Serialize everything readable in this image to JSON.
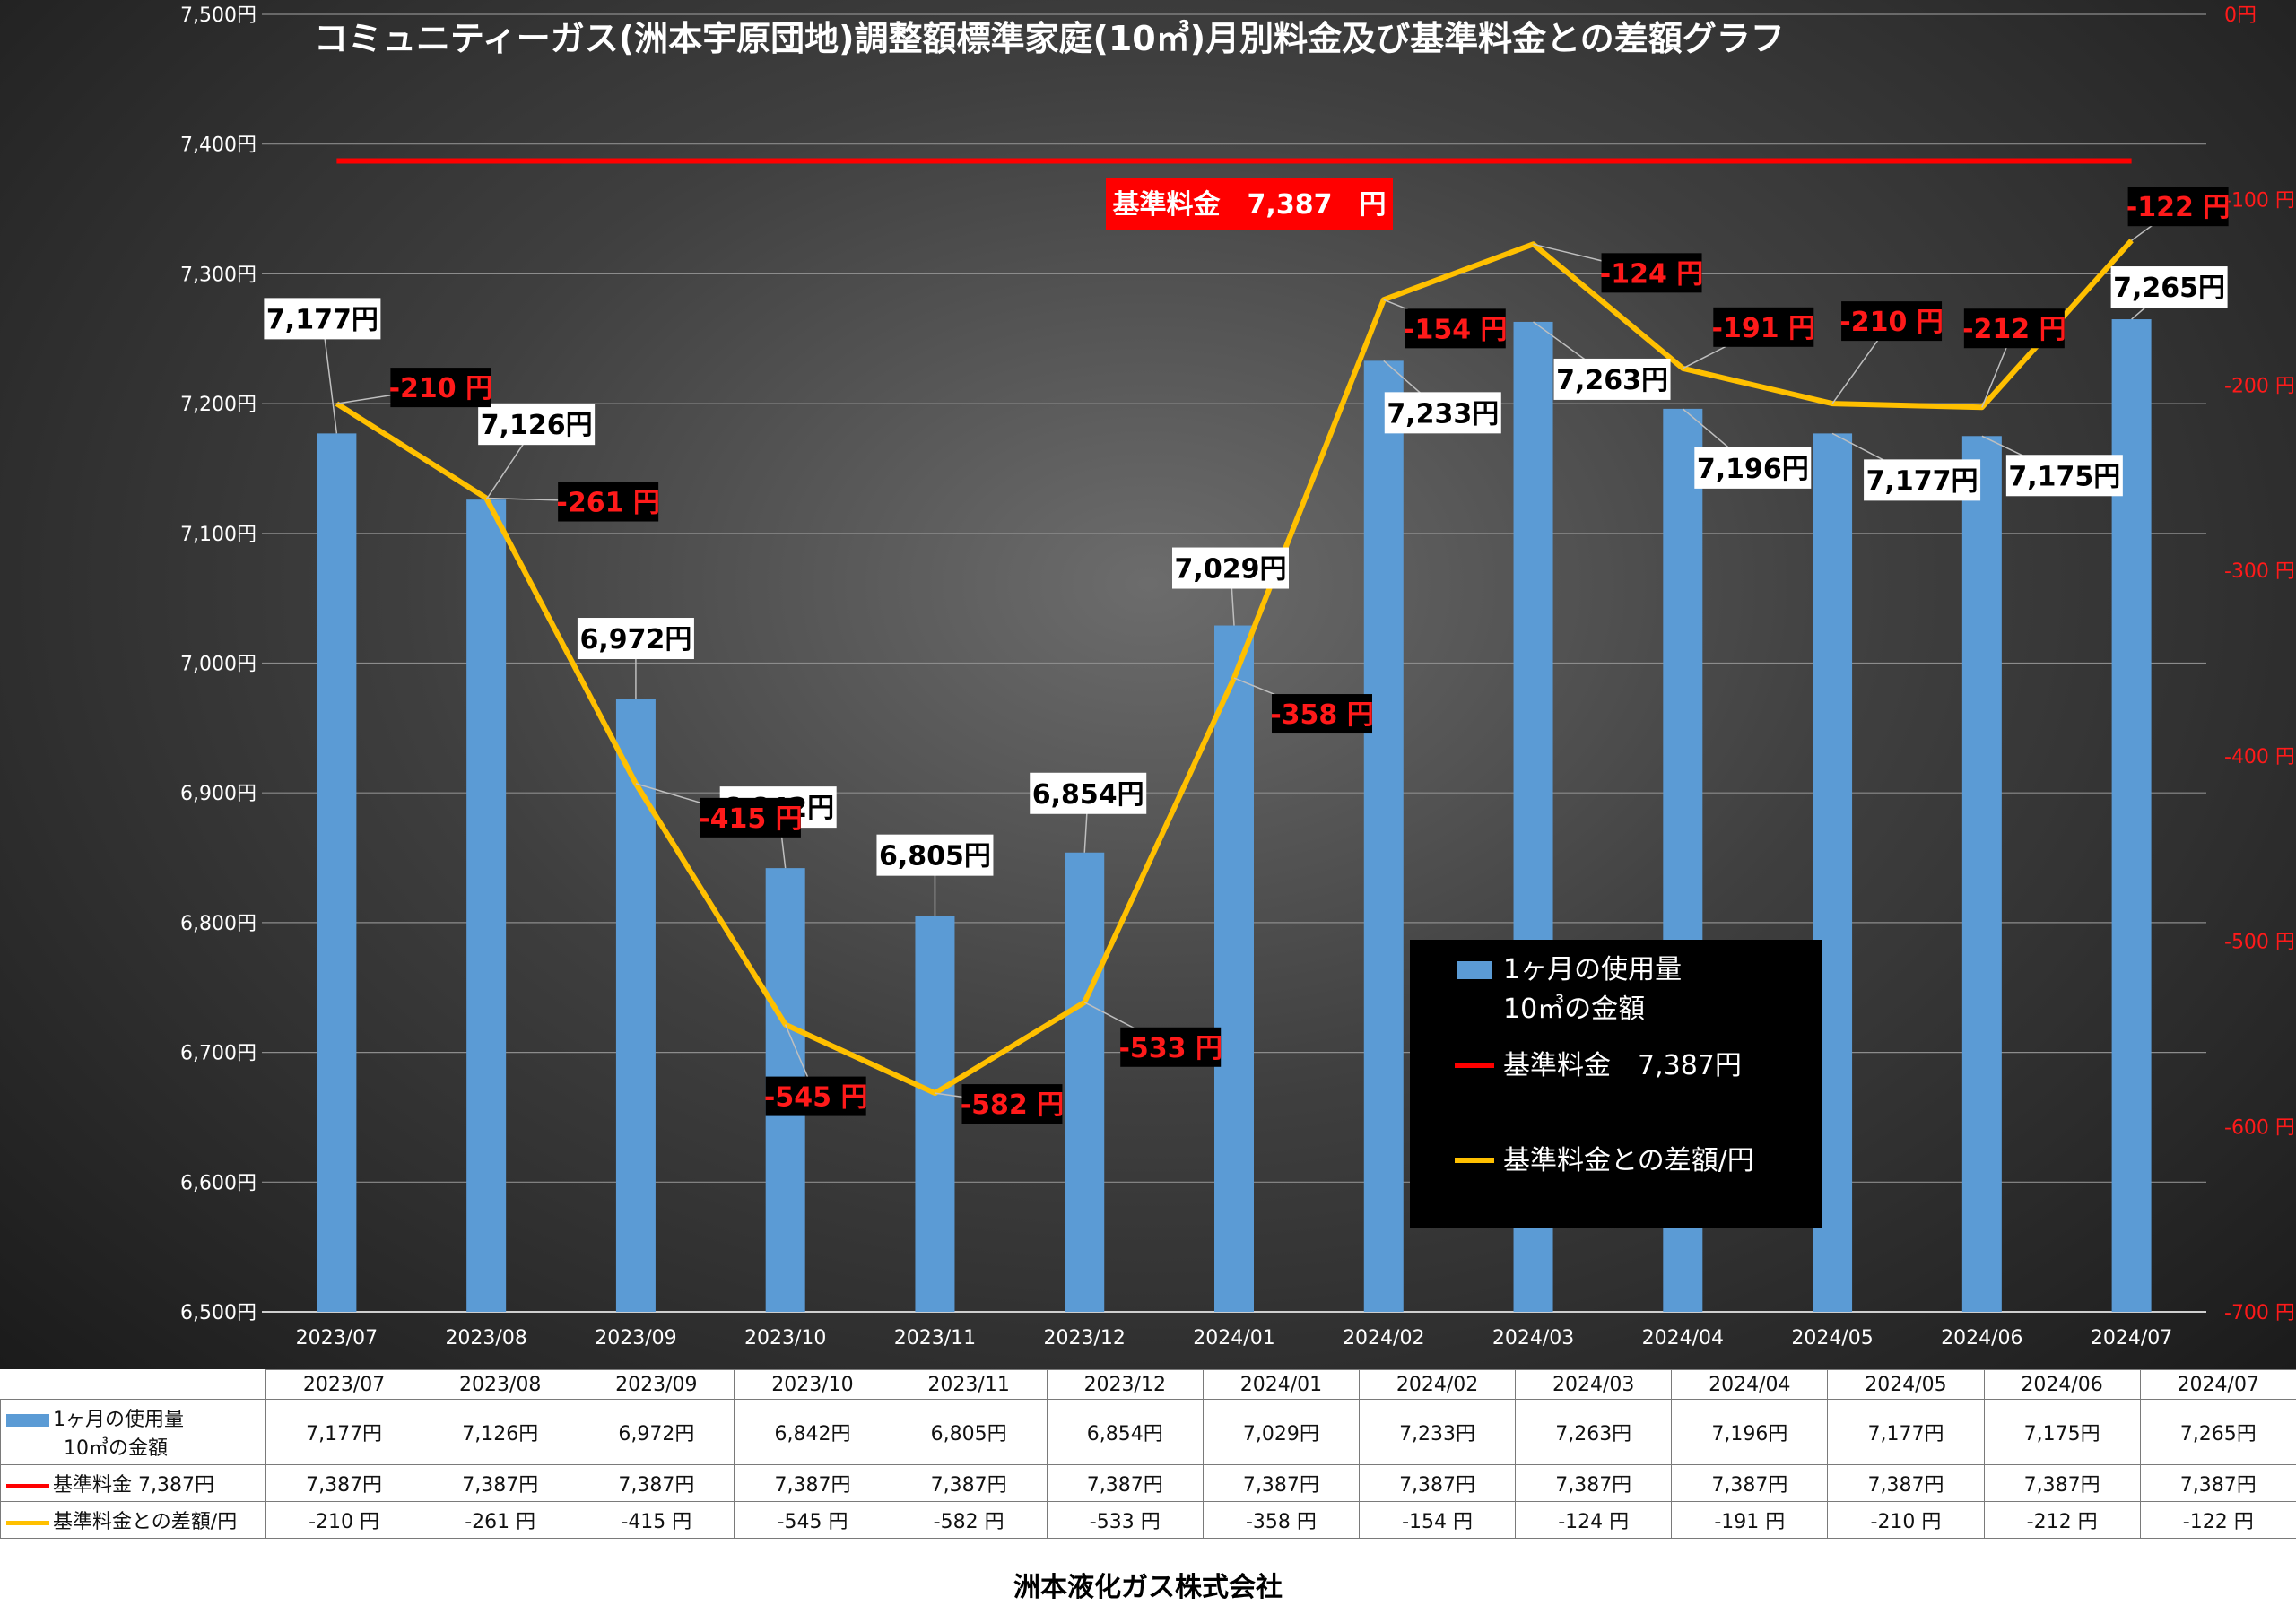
{
  "chart_data": {
    "type": "bar",
    "title": "コミュニティーガス(洲本宇原団地)調整額標準家庭(10㎥)月別料金及び基準料金との差額グラフ",
    "categories": [
      "2023/07",
      "2023/08",
      "2023/09",
      "2023/10",
      "2023/11",
      "2023/12",
      "2024/01",
      "2024/02",
      "2024/03",
      "2024/04",
      "2024/05",
      "2024/06",
      "2024/07"
    ],
    "series": [
      {
        "name": "1ヶ月の使用量 10㎥の金額",
        "type": "bar",
        "axis": "left",
        "color": "#5b9bd5",
        "values": [
          7177,
          7126,
          6972,
          6842,
          6805,
          6854,
          7029,
          7233,
          7263,
          7196,
          7177,
          7175,
          7265
        ],
        "labels": [
          "7,177円",
          "7,126円",
          "6,972円",
          "6,842円",
          "6,805円",
          "6,854円",
          "7,029円",
          "7,233円",
          "7,263円",
          "7,196円",
          "7,177円",
          "7,175円",
          "7,265円"
        ]
      },
      {
        "name": "基準料金 7,387円",
        "type": "line",
        "axis": "left",
        "color": "#ff0000",
        "values": [
          7387,
          7387,
          7387,
          7387,
          7387,
          7387,
          7387,
          7387,
          7387,
          7387,
          7387,
          7387,
          7387
        ]
      },
      {
        "name": "基準料金との差額/円",
        "type": "line",
        "axis": "right",
        "color": "#ffc000",
        "values": [
          -210,
          -261,
          -415,
          -545,
          -582,
          -533,
          -358,
          -154,
          -124,
          -191,
          -210,
          -212,
          -122
        ],
        "labels": [
          "-210 円",
          "-261 円",
          "-415 円",
          "-545 円",
          "-582 円",
          "-533 円",
          "-358 円",
          "-154 円",
          "-124 円",
          "-191 円",
          "-210 円",
          "-212 円",
          "-122 円"
        ]
      }
    ],
    "y_left": {
      "min": 6500,
      "max": 7500,
      "step": 100,
      "ticks": [
        "6,500円",
        "6,600円",
        "6,700円",
        "6,800円",
        "6,900円",
        "7,000円",
        "7,100円",
        "7,200円",
        "7,300円",
        "7,400円",
        "7,500円"
      ]
    },
    "y_right": {
      "min": -700,
      "max": 0,
      "step": 100,
      "ticks": [
        "-700 円",
        "-600 円",
        "-500 円",
        "-400 円",
        "-300 円",
        "-200 円",
        "-100 円",
        "0円"
      ]
    },
    "base_label": "基準料金　7,387　円",
    "grid": true,
    "legend_position": "lower-right",
    "legend": [
      {
        "key": "bar",
        "text_line1": "1ヶ月の使用量",
        "text_line2": "10㎥の金額"
      },
      {
        "key": "red-line",
        "text_line1": "基準料金　7,387円"
      },
      {
        "key": "yellow-line",
        "text_line1": "基準料金との差額/円"
      }
    ]
  },
  "table": {
    "rows": [
      {
        "name": "1ヶ月の使用量",
        "name2": "10㎥の金額",
        "key": "bar",
        "cells": [
          "7,177円",
          "7,126円",
          "6,972円",
          "6,842円",
          "6,805円",
          "6,854円",
          "7,029円",
          "7,233円",
          "7,263円",
          "7,196円",
          "7,177円",
          "7,175円",
          "7,265円"
        ]
      },
      {
        "name": "基準料金  7,387円",
        "key": "red",
        "cells": [
          "7,387円",
          "7,387円",
          "7,387円",
          "7,387円",
          "7,387円",
          "7,387円",
          "7,387円",
          "7,387円",
          "7,387円",
          "7,387円",
          "7,387円",
          "7,387円",
          "7,387円"
        ]
      },
      {
        "name": "基準料金との差額/円",
        "key": "yellow",
        "cells": [
          "-210 円",
          "-261 円",
          "-415 円",
          "-545 円",
          "-582 円",
          "-533 円",
          "-358 円",
          "-154 円",
          "-124 円",
          "-191 円",
          "-210 円",
          "-212 円",
          "-122 円"
        ]
      }
    ]
  },
  "footer": {
    "company": "洲本液化ガス株式会社"
  }
}
